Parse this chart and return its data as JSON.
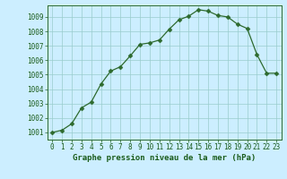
{
  "x": [
    0,
    1,
    2,
    3,
    4,
    5,
    6,
    7,
    8,
    9,
    10,
    11,
    12,
    13,
    14,
    15,
    16,
    17,
    18,
    19,
    20,
    21,
    22,
    23
  ],
  "y": [
    1001.0,
    1001.15,
    1001.6,
    1002.7,
    1003.1,
    1004.35,
    1005.25,
    1005.55,
    1006.3,
    1007.1,
    1007.2,
    1007.4,
    1008.15,
    1008.8,
    1009.05,
    1009.5,
    1009.4,
    1009.1,
    1009.0,
    1008.5,
    1008.2,
    1006.4,
    1005.1,
    1005.1
  ],
  "line_color": "#2d6a2d",
  "marker": "D",
  "marker_size": 2.5,
  "background_color": "#cceeff",
  "grid_color": "#99cccc",
  "title": "Graphe pression niveau de la mer (hPa)",
  "ylim": [
    1000.5,
    1009.8
  ],
  "xlim": [
    -0.5,
    23.5
  ],
  "yticks": [
    1001,
    1002,
    1003,
    1004,
    1005,
    1006,
    1007,
    1008,
    1009
  ],
  "xticks": [
    0,
    1,
    2,
    3,
    4,
    5,
    6,
    7,
    8,
    9,
    10,
    11,
    12,
    13,
    14,
    15,
    16,
    17,
    18,
    19,
    20,
    21,
    22,
    23
  ],
  "tick_fontsize": 5.5,
  "title_fontsize": 6.5,
  "title_color": "#1a5c1a",
  "tick_color": "#1a5c1a",
  "axis_color": "#2d6a2d",
  "line_width": 0.9
}
